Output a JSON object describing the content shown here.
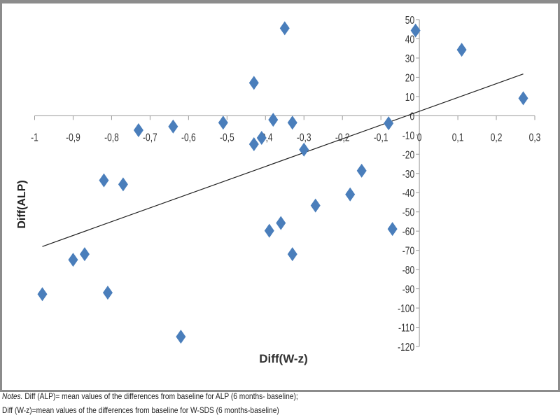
{
  "chart_data": {
    "type": "scatter",
    "title": "",
    "xlabel": "Diff(W-z)",
    "ylabel": "Diff(ALP)",
    "xlim": [
      -1,
      0.3
    ],
    "ylim": [
      -120,
      50
    ],
    "xticks": [
      "-1",
      "-0,9",
      "-0,8",
      "-0,7",
      "-0,6",
      "-0,5",
      "-0,4",
      "-0,3",
      "-0,2",
      "-0,1",
      "0",
      "0,1",
      "0,2",
      "0,3"
    ],
    "xtick_values": [
      -1,
      -0.9,
      -0.8,
      -0.7,
      -0.6,
      -0.5,
      -0.4,
      -0.3,
      -0.2,
      -0.1,
      0,
      0.1,
      0.2,
      0.3
    ],
    "yticks": [
      "50",
      "40",
      "30",
      "20",
      "10",
      "0",
      "-10",
      "-20",
      "-30",
      "-40",
      "-50",
      "-60",
      "-70",
      "-80",
      "-90",
      "-100",
      "-110",
      "-120"
    ],
    "ytick_values": [
      50,
      40,
      30,
      20,
      10,
      0,
      -10,
      -20,
      -30,
      -40,
      -50,
      -60,
      -70,
      -80,
      -90,
      -100,
      -110,
      -120
    ],
    "grid": false,
    "marker_color": "#4a7ebb",
    "points": [
      [
        -0.35,
        45.5
      ],
      [
        -0.01,
        44.3
      ],
      [
        0.11,
        34.3
      ],
      [
        -0.43,
        17.1
      ],
      [
        0.27,
        9.1
      ],
      [
        -0.38,
        -2.1
      ],
      [
        -0.51,
        -3.6
      ],
      [
        -0.33,
        -3.6
      ],
      [
        -0.08,
        -3.9
      ],
      [
        -0.64,
        -5.6
      ],
      [
        -0.73,
        -7.5
      ],
      [
        -0.41,
        -11.5
      ],
      [
        -0.43,
        -14.8
      ],
      [
        -0.3,
        -17.6
      ],
      [
        -0.15,
        -28.6
      ],
      [
        -0.82,
        -33.6
      ],
      [
        -0.77,
        -35.7
      ],
      [
        -0.18,
        -40.9
      ],
      [
        -0.27,
        -46.7
      ],
      [
        -0.36,
        -55.8
      ],
      [
        -0.39,
        -59.8
      ],
      [
        -0.07,
        -58.9
      ],
      [
        -0.33,
        -72
      ],
      [
        -0.87,
        -72
      ],
      [
        -0.9,
        -74.9
      ],
      [
        -0.98,
        -92.8
      ],
      [
        -0.81,
        -92
      ],
      [
        -0.62,
        -114.9
      ]
    ],
    "trendline": {
      "x": [
        -0.98,
        0.27
      ],
      "y": [
        -68,
        21.7
      ]
    }
  },
  "notes": {
    "line1_label": "Notes.",
    "line1_text": " Diff (ALP)= mean values of the differences from baseline for ALP (6 months- baseline);",
    "line2_text": "Diff (W-z)=mean values of the differences from baseline for W-SDS (6 months-baseline)"
  }
}
